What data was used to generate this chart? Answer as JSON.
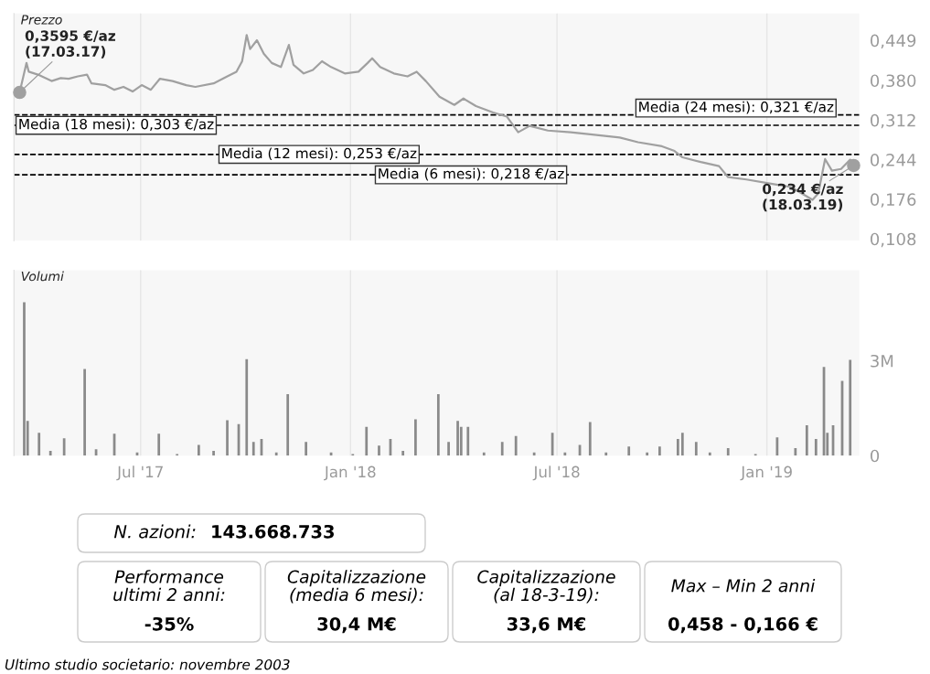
{
  "chart_data": [
    {
      "type": "line",
      "title": "Prezzo",
      "tick_labels": "y",
      "grid": "x",
      "x": [
        "2017-03-17",
        "2017-03-23",
        "2017-03-25",
        "2017-04-02",
        "2017-04-14",
        "2017-04-22",
        "2017-04-29",
        "2017-05-07",
        "2017-05-15",
        "2017-05-19",
        "2017-05-31",
        "2017-06-08",
        "2017-06-16",
        "2017-06-24",
        "2017-07-02",
        "2017-07-10",
        "2017-07-18",
        "2017-07-29",
        "2017-08-10",
        "2017-08-18",
        "2017-09-03",
        "2017-09-15",
        "2017-09-23",
        "2017-09-28",
        "2017-10-02",
        "2017-10-05",
        "2017-10-11",
        "2017-10-17",
        "2017-10-24",
        "2017-11-01",
        "2017-11-08",
        "2017-11-12",
        "2017-11-21",
        "2017-11-29",
        "2017-12-07",
        "2017-12-15",
        "2017-12-27",
        "2018-01-08",
        "2018-01-16",
        "2018-01-20",
        "2018-01-27",
        "2018-02-08",
        "2018-02-20",
        "2018-02-28",
        "2018-03-08",
        "2018-03-20",
        "2018-04-02",
        "2018-04-10",
        "2018-04-21",
        "2018-05-06",
        "2018-05-18",
        "2018-05-28",
        "2018-06-07",
        "2018-06-23",
        "2018-07-13",
        "2018-08-01",
        "2018-08-25",
        "2018-09-10",
        "2018-10-01",
        "2018-10-12",
        "2018-10-19",
        "2018-11-04",
        "2018-11-20",
        "2018-11-28",
        "2018-12-14",
        "2019-01-07",
        "2019-01-22",
        "2019-02-10",
        "2019-02-15",
        "2019-02-21",
        "2019-02-27",
        "2019-03-07",
        "2019-03-15",
        "2019-03-18"
      ],
      "series": [
        {
          "color": "#a0a0a0",
          "values": [
            0.3595,
            0.41,
            0.395,
            0.39,
            0.379,
            0.384,
            0.383,
            0.387,
            0.39,
            0.375,
            0.372,
            0.364,
            0.369,
            0.361,
            0.372,
            0.364,
            0.383,
            0.379,
            0.372,
            0.369,
            0.375,
            0.387,
            0.395,
            0.413,
            0.458,
            0.434,
            0.449,
            0.426,
            0.41,
            0.403,
            0.441,
            0.407,
            0.392,
            0.398,
            0.413,
            0.403,
            0.392,
            0.395,
            0.41,
            0.418,
            0.403,
            0.392,
            0.387,
            0.395,
            0.379,
            0.352,
            0.338,
            0.349,
            0.336,
            0.325,
            0.318,
            0.291,
            0.302,
            0.294,
            0.291,
            0.287,
            0.282,
            0.274,
            0.267,
            0.259,
            0.248,
            0.24,
            0.233,
            0.214,
            0.21,
            0.202,
            0.197,
            0.175,
            0.186,
            0.245,
            0.225,
            0.228,
            0.244,
            0.234
          ]
        }
      ],
      "xlim": [
        "2017-03-12",
        "2019-03-23"
      ],
      "xticks": [
        {
          "value": "2017-07-01",
          "label": null
        },
        {
          "value": "2018-01-01",
          "label": null
        },
        {
          "value": "2018-07-01",
          "label": null
        },
        {
          "value": "2019-01-01",
          "label": null
        }
      ],
      "ylim": [
        0.105,
        0.495
      ],
      "yticks": [
        {
          "value": 0.108,
          "label": "0,108"
        },
        {
          "value": 0.176,
          "label": "0,176"
        },
        {
          "value": 0.244,
          "label": "0,244"
        },
        {
          "value": 0.312,
          "label": "0,312"
        },
        {
          "value": 0.38,
          "label": "0,380"
        },
        {
          "value": 0.449,
          "label": "0,449"
        }
      ],
      "ref_lines": [
        {
          "axis": "y",
          "value": 0.321,
          "label": "Media (24 mesi): 0,321 €/az",
          "color": "#000000",
          "line_style": "dashed"
        },
        {
          "axis": "y",
          "value": 0.303,
          "label": "Media (18 mesi): 0,303 €/az",
          "color": "#000000",
          "line_style": "dashed"
        },
        {
          "axis": "y",
          "value": 0.253,
          "label": "Media (12 mesi): 0,253 €/az",
          "color": "#000000",
          "line_style": "dashed"
        },
        {
          "axis": "y",
          "value": 0.218,
          "label": "Media (6 mesi): 0,218 €/az",
          "color": "#000000",
          "line_style": "dashed"
        }
      ],
      "annotations": [
        {
          "text": "0,3595 €/az\n(17.03.17)",
          "x": "2017-03-17",
          "y": 0.3595
        },
        {
          "text": "0,234 €/az\n(18.03.19)",
          "x": "2019-03-18",
          "y": 0.234
        }
      ]
    },
    {
      "type": "bar",
      "title": "Volumi",
      "grid": "x",
      "x": [
        "2017-03-21",
        "2017-03-24",
        "2017-04-03",
        "2017-04-13",
        "2017-04-25",
        "2017-05-13",
        "2017-05-23",
        "2017-06-08",
        "2017-06-28",
        "2017-07-17",
        "2017-08-02",
        "2017-08-21",
        "2017-09-03",
        "2017-09-15",
        "2017-09-25",
        "2017-10-02",
        "2017-10-08",
        "2017-10-15",
        "2017-10-28",
        "2017-11-07",
        "2017-11-23",
        "2017-12-15",
        "2018-01-03",
        "2018-01-15",
        "2018-01-26",
        "2018-02-05",
        "2018-02-16",
        "2018-02-27",
        "2018-03-19",
        "2018-03-28",
        "2018-04-05",
        "2018-04-08",
        "2018-04-14",
        "2018-04-28",
        "2018-05-14",
        "2018-05-26",
        "2018-06-11",
        "2018-06-27",
        "2018-07-08",
        "2018-07-21",
        "2018-07-30",
        "2018-08-13",
        "2018-09-02",
        "2018-09-18",
        "2018-09-29",
        "2018-10-15",
        "2018-10-19",
        "2018-10-31",
        "2018-11-12",
        "2018-11-28",
        "2018-12-22",
        "2019-01-10",
        "2019-01-26",
        "2019-02-05",
        "2019-02-13",
        "2019-02-20",
        "2019-02-23",
        "2019-02-28",
        "2019-03-08",
        "2019-03-15"
      ],
      "series": [
        {
          "color": "#8a8a8a",
          "values": [
            4850000,
            1100000,
            720000,
            150000,
            550000,
            2740000,
            200000,
            690000,
            100000,
            690000,
            50000,
            340000,
            150000,
            1120000,
            1000000,
            3050000,
            430000,
            530000,
            100000,
            1940000,
            430000,
            100000,
            50000,
            910000,
            320000,
            530000,
            150000,
            1150000,
            1940000,
            430000,
            1100000,
            910000,
            910000,
            100000,
            430000,
            620000,
            100000,
            720000,
            100000,
            340000,
            1060000,
            100000,
            290000,
            100000,
            290000,
            530000,
            720000,
            430000,
            100000,
            240000,
            50000,
            580000,
            240000,
            960000,
            530000,
            2800000,
            720000,
            960000,
            2360000,
            3030000
          ]
        }
      ],
      "xlim": [
        "2017-03-12",
        "2019-03-23"
      ],
      "xticks": [
        {
          "value": "2017-07-01",
          "label": "Jul '17"
        },
        {
          "value": "2018-01-01",
          "label": "Jan '18"
        },
        {
          "value": "2018-07-01",
          "label": "Jul '18"
        },
        {
          "value": "2019-01-01",
          "label": "Jan '19"
        }
      ],
      "ylim": [
        0,
        5860000
      ],
      "yticks": [
        0,
        {
          "value": 3000000,
          "label": "3M"
        }
      ]
    },
    {
      "type": "other",
      "annotations": [
        "N. azioni:",
        "143.668.733",
        "Performance\nultimi 2 anni:",
        "-35%",
        "Capitalizzazione\n(media 6 mesi):",
        "30,4 M€",
        "Capitalizzazione\n(al 18-3-19):",
        "33,6 M€",
        "Max – Min 2 anni",
        "0,458 - 0,166 €",
        "Ultimo studio societario: novembre 2003"
      ]
    }
  ]
}
